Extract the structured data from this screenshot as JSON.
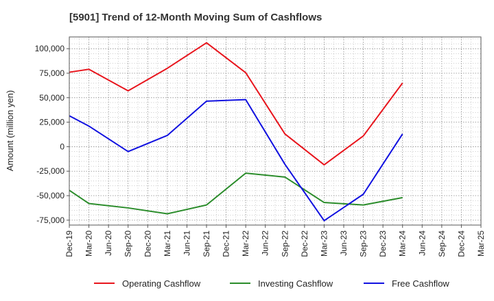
{
  "chart_data": {
    "type": "line",
    "title": "[5901]  Trend of 12-Month Moving Sum of Cashflows",
    "xlabel": "",
    "ylabel": "Amount (million yen)",
    "ylim": [
      -80000,
      112000
    ],
    "yticks": [
      100000,
      75000,
      50000,
      25000,
      0,
      -25000,
      -50000,
      -75000
    ],
    "ytick_labels": [
      "100,000",
      "75,000",
      "50,000",
      "25,000",
      "0",
      "-25,000",
      "-50,000",
      "-75,000"
    ],
    "categories": [
      "Dec-19",
      "Mar-20",
      "Jun-20",
      "Sep-20",
      "Dec-20",
      "Mar-21",
      "Jun-21",
      "Sep-21",
      "Dec-21",
      "Mar-22",
      "Jun-22",
      "Sep-22",
      "Dec-22",
      "Mar-23",
      "Jun-23",
      "Sep-23",
      "Dec-23",
      "Mar-24",
      "Jun-24",
      "Sep-24",
      "Dec-24",
      "Mar-25"
    ],
    "grid": true,
    "legend_position": "bottom",
    "series": [
      {
        "name": "Operating Cashflow",
        "color": "#e8141c",
        "values": [
          76000,
          79000,
          null,
          57000,
          null,
          80000,
          null,
          106000,
          null,
          75500,
          null,
          13000,
          null,
          -18500,
          null,
          11000,
          null,
          65000,
          null,
          null,
          null,
          null
        ]
      },
      {
        "name": "Investing Cashflow",
        "color": "#2a8c2a",
        "values": [
          -44500,
          -58000,
          null,
          -62500,
          null,
          -68500,
          null,
          -59500,
          null,
          -27000,
          null,
          -31000,
          null,
          -57000,
          null,
          -59500,
          null,
          -52000,
          null,
          null,
          null,
          null
        ]
      },
      {
        "name": "Free Cashflow",
        "color": "#1010e0",
        "values": [
          31500,
          21000,
          null,
          -5000,
          null,
          11500,
          null,
          46500,
          null,
          48000,
          null,
          -18000,
          null,
          -75500,
          null,
          -48500,
          null,
          13000,
          null,
          null,
          null,
          null
        ]
      }
    ]
  }
}
